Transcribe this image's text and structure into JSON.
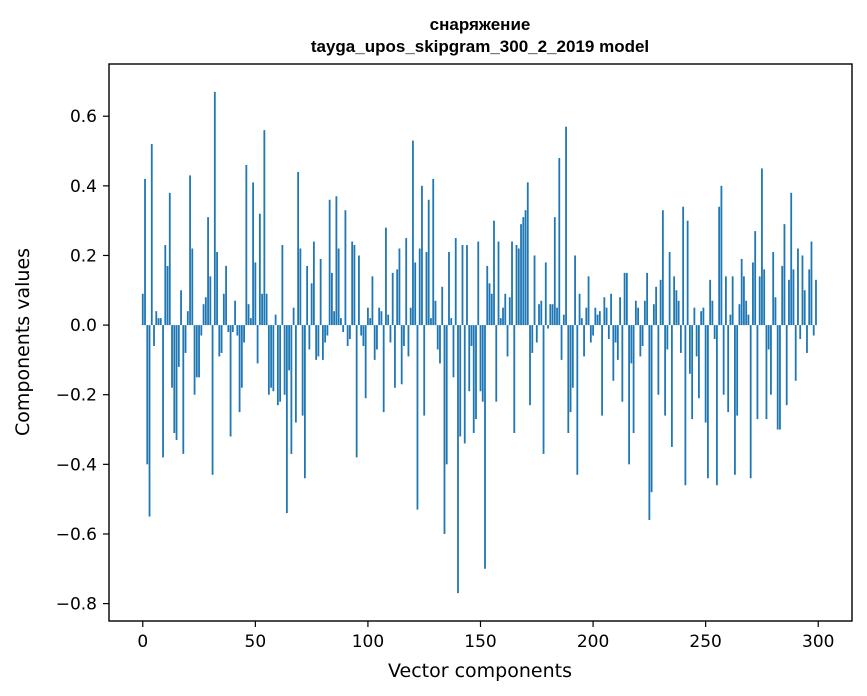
{
  "chart_data": {
    "type": "bar",
    "title": "снаряжение",
    "subtitle": "tayga_upos_skipgram_300_2_2019 model",
    "xlabel": "Vector components",
    "ylabel": "Components values",
    "xlim": [
      -15,
      315
    ],
    "ylim": [
      -0.85,
      0.75
    ],
    "xticks": [
      0,
      50,
      100,
      150,
      200,
      250,
      300
    ],
    "xtick_labels": [
      "0",
      "50",
      "100",
      "150",
      "200",
      "250",
      "300"
    ],
    "yticks": [
      0.6,
      0.4,
      0.2,
      0.0,
      -0.2,
      -0.4,
      -0.6,
      -0.8
    ],
    "ytick_labels": [
      "0.6",
      "0.4",
      "0.2",
      "0.0",
      "−0.2",
      "−0.4",
      "−0.6",
      "−0.8"
    ],
    "grid": false,
    "bar_color": "#1f77b4",
    "series": [
      {
        "values": [
          0.09,
          0.42,
          -0.4,
          -0.55,
          0.52,
          -0.06,
          0.04,
          0.02,
          0.02,
          -0.38,
          0.23,
          0.17,
          0.38,
          -0.18,
          -0.31,
          -0.33,
          -0.12,
          0.1,
          -0.37,
          -0.08,
          0.04,
          0.43,
          0.22,
          -0.2,
          -0.15,
          -0.15,
          -0.03,
          0.06,
          0.08,
          0.31,
          0.14,
          -0.43,
          0.67,
          0.21,
          -0.09,
          -0.08,
          0.09,
          0.17,
          -0.02,
          -0.32,
          -0.02,
          0.07,
          -0.03,
          -0.25,
          -0.18,
          -0.05,
          0.46,
          0.06,
          0.02,
          0.41,
          0.18,
          -0.11,
          0.32,
          0.09,
          0.56,
          0.09,
          -0.2,
          -0.18,
          -0.19,
          0.03,
          -0.23,
          -0.22,
          0.23,
          -0.2,
          -0.54,
          -0.13,
          -0.37,
          0.05,
          -0.28,
          0.44,
          0.22,
          -0.26,
          -0.44,
          0.17,
          -0.07,
          0.12,
          0.24,
          -0.1,
          -0.09,
          0.19,
          -0.1,
          -0.05,
          -0.03,
          0.36,
          0.15,
          0.04,
          0.37,
          0.22,
          0.02,
          -0.02,
          0.33,
          -0.06,
          -0.04,
          0.24,
          0.23,
          -0.38,
          0.2,
          -0.03,
          -0.06,
          -0.21,
          0.05,
          0.02,
          0.14,
          -0.1,
          -0.07,
          0.05,
          0.04,
          -0.25,
          0.28,
          0.03,
          -0.05,
          0.15,
          -0.18,
          0.16,
          0.22,
          -0.17,
          -0.06,
          0.25,
          -0.09,
          0.05,
          0.53,
          0.18,
          -0.53,
          0.22,
          0.4,
          -0.26,
          0.21,
          0.36,
          0.02,
          0.42,
          0.07,
          -0.07,
          -0.11,
          0.11,
          -0.6,
          -0.4,
          0.21,
          0.02,
          -0.15,
          0.25,
          -0.77,
          -0.32,
          0.23,
          -0.34,
          0.23,
          -0.19,
          -0.06,
          -0.31,
          -0.27,
          0.24,
          -0.19,
          -0.22,
          -0.7,
          0.17,
          0.12,
          0.09,
          0.3,
          -0.22,
          0.24,
          0.02,
          0.05,
          0.09,
          -0.09,
          0.08,
          0.24,
          -0.31,
          0.23,
          0.22,
          0.29,
          0.31,
          0.33,
          0.41,
          -0.23,
          -0.08,
          0.2,
          -0.05,
          0.06,
          0.07,
          -0.37,
          0.18,
          -0.01,
          0.06,
          0.06,
          0.31,
          0.05,
          0.48,
          -0.1,
          0.03,
          0.57,
          -0.31,
          -0.25,
          -0.18,
          0.2,
          -0.43,
          0.09,
          0.02,
          -0.09,
          0.05,
          0.14,
          -0.05,
          -0.03,
          0.05,
          0.03,
          0.04,
          -0.26,
          0.08,
          0.05,
          -0.04,
          0.09,
          -0.16,
          -0.05,
          -0.1,
          0.08,
          -0.22,
          0.15,
          0.15,
          -0.4,
          -0.11,
          -0.31,
          0.07,
          0.05,
          -0.09,
          -0.06,
          0.07,
          0.15,
          -0.56,
          -0.48,
          0.06,
          0.11,
          -0.2,
          0.13,
          0.33,
          -0.26,
          -0.07,
          0.21,
          -0.35,
          0.14,
          0.1,
          0.07,
          -0.08,
          0.34,
          -0.46,
          0.3,
          -0.14,
          -0.27,
          0.05,
          -0.09,
          -0.21,
          0.04,
          0.05,
          -0.28,
          -0.44,
          0.13,
          0.07,
          -0.04,
          -0.46,
          0.34,
          0.4,
          -0.2,
          0.14,
          -0.25,
          0.03,
          0.14,
          -0.43,
          -0.26,
          0.06,
          0.19,
          0.14,
          0.07,
          0.03,
          -0.44,
          0.18,
          0.27,
          -0.27,
          0.14,
          0.45,
          0.16,
          -0.27,
          -0.07,
          -0.2,
          0.21,
          0.08,
          -0.3,
          -0.3,
          0.17,
          0.29,
          -0.23,
          0.13,
          0.38,
          0.16,
          -0.16,
          0.22,
          -0.04,
          0.2,
          0.1,
          -0.08,
          0.16,
          0.24,
          -0.03,
          0.13
        ]
      }
    ]
  }
}
